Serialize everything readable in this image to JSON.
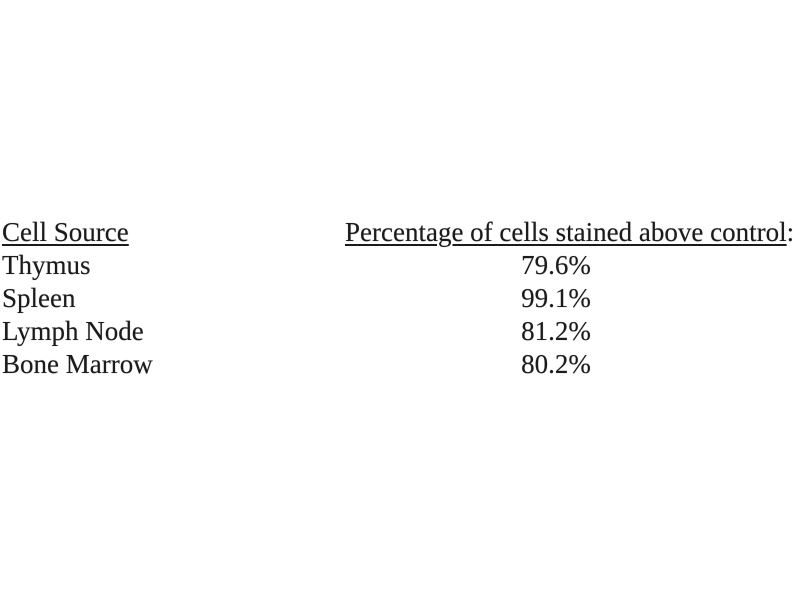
{
  "page": {
    "background_color": "#ffffff",
    "text_color": "#1b1b1b"
  },
  "table": {
    "header": {
      "cell_source": "Cell Source",
      "percentage": "Percentage of cells stained above control",
      "percentage_suffix": ":"
    },
    "rows": [
      {
        "cell_source": "Thymus",
        "percentage": "79.6%"
      },
      {
        "cell_source": "Spleen",
        "percentage": "99.1%"
      },
      {
        "cell_source": "Lymph Node",
        "percentage": "81.2%"
      },
      {
        "cell_source": "Bone Marrow",
        "percentage": "80.2%"
      }
    ]
  },
  "chart_data": {
    "type": "table",
    "title": "",
    "columns": [
      "Cell Source",
      "Percentage of cells stained above control:"
    ],
    "categories": [
      "Thymus",
      "Spleen",
      "Lymph Node",
      "Bone Marrow"
    ],
    "values": [
      79.6,
      99.1,
      81.2,
      80.2
    ],
    "value_unit": "%"
  }
}
